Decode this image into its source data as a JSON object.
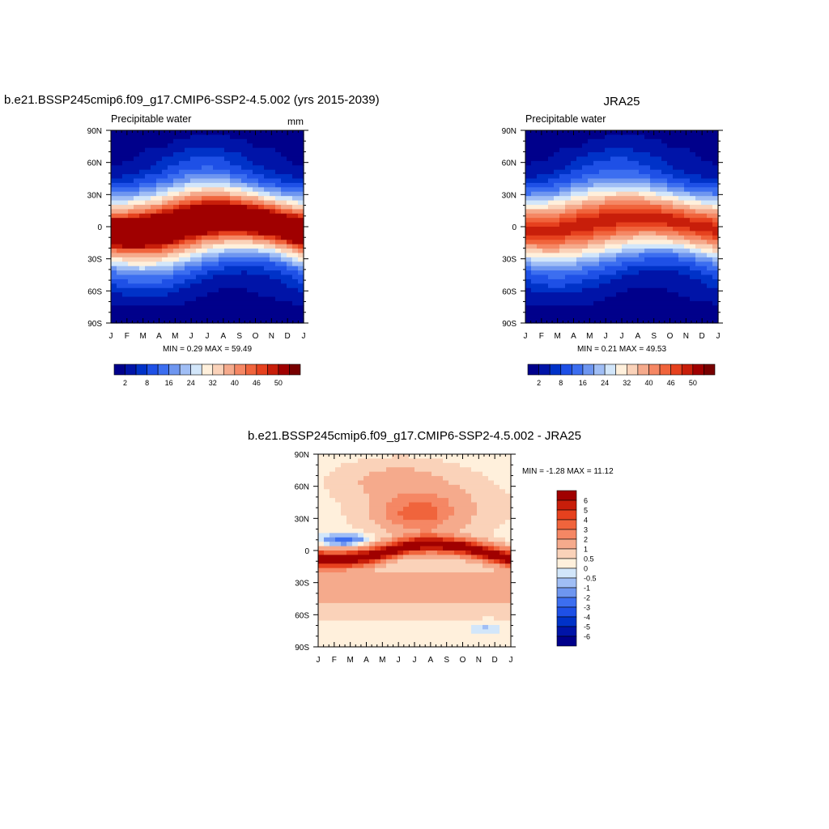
{
  "panels": {
    "model": {
      "title": "b.e21.BSSP245cmip6.f09_g17.CMIP6-SSP2-4.5.002 (yrs 2015-2039)",
      "left_label": "Precipitable water",
      "right_label": "mm",
      "stats": "MIN =   0.29 MAX =  59.49"
    },
    "obs": {
      "title": "JRA25",
      "left_label": "Precipitable water",
      "stats": "MIN =   0.21 MAX =  49.53"
    },
    "diff": {
      "title": "b.e21.BSSP245cmip6.f09_g17.CMIP6-SSP2-4.5.002 - JRA25",
      "stats": "MIN =  -1.28 MAX =  11.12"
    }
  },
  "chart_data": [
    {
      "type": "heatmap",
      "name": "model",
      "x_ticks": [
        "J",
        "F",
        "M",
        "A",
        "M",
        "J",
        "J",
        "A",
        "S",
        "O",
        "N",
        "D",
        "J"
      ],
      "y_ticks": [
        "90N",
        "60N",
        "30N",
        "0",
        "30S",
        "60S",
        "90S"
      ],
      "ylim": [
        -90,
        90
      ],
      "itcz_lat_by_month": [
        -5,
        -6,
        -5,
        -3,
        1,
        5,
        8,
        9,
        8,
        6,
        3,
        -1,
        -5
      ],
      "peak_value": 58,
      "levels": [
        2,
        5,
        8,
        12,
        16,
        20,
        24,
        28,
        32,
        36,
        40,
        43,
        46,
        48,
        50
      ],
      "colorbar_labels": [
        "2",
        "8",
        "16",
        "24",
        "32",
        "40",
        "46",
        "50"
      ],
      "min": 0.29,
      "max": 59.49
    },
    {
      "type": "heatmap",
      "name": "obs",
      "x_ticks": [
        "J",
        "F",
        "M",
        "A",
        "M",
        "J",
        "J",
        "A",
        "S",
        "O",
        "N",
        "D",
        "J"
      ],
      "y_ticks": [
        "90N",
        "60N",
        "30N",
        "0",
        "30S",
        "60S",
        "90S"
      ],
      "ylim": [
        -90,
        90
      ],
      "itcz_lat_by_month": [
        -3,
        -4,
        -3,
        0,
        3,
        6,
        8,
        9,
        8,
        6,
        3,
        0,
        -3
      ],
      "peak_value": 49,
      "levels": [
        2,
        5,
        8,
        12,
        16,
        20,
        24,
        28,
        32,
        36,
        40,
        43,
        46,
        48,
        50
      ],
      "colorbar_labels": [
        "2",
        "8",
        "16",
        "24",
        "32",
        "40",
        "46",
        "50"
      ],
      "min": 0.21,
      "max": 49.53
    },
    {
      "type": "heatmap",
      "name": "difference",
      "x_ticks": [
        "J",
        "F",
        "M",
        "A",
        "M",
        "J",
        "J",
        "A",
        "S",
        "O",
        "N",
        "D",
        "J"
      ],
      "y_ticks": [
        "90N",
        "60N",
        "30N",
        "0",
        "30S",
        "60S",
        "90S"
      ],
      "ylim": [
        -90,
        90
      ],
      "levels": [
        -6,
        -5,
        -4,
        -3,
        -2,
        -1,
        -0.5,
        0,
        0.5,
        1,
        2,
        3,
        4,
        5,
        6
      ],
      "colorbar_labels": [
        "6",
        "5",
        "4",
        "3",
        "2",
        "1",
        "0.5",
        "0",
        "-0.5",
        "-1",
        "-2",
        "-3",
        "-4",
        "-5",
        "-6"
      ],
      "min": -1.28,
      "max": 11.12
    }
  ],
  "colors": {
    "precip_palette": [
      "#00008b",
      "#0014a8",
      "#0032c8",
      "#1e50e6",
      "#3c6ef0",
      "#6e96f0",
      "#a0bef5",
      "#d2e6fa",
      "#fff0dc",
      "#fad2b9",
      "#f5aa8c",
      "#f58764",
      "#f0643c",
      "#e6411e",
      "#c81e0a",
      "#a00000",
      "#780000"
    ],
    "diff_palette": [
      "#00008b",
      "#0014a8",
      "#0032c8",
      "#1e50e6",
      "#3c6ef0",
      "#6e96f0",
      "#a0bef5",
      "#d2e6fa",
      "#fff0dc",
      "#fad2b9",
      "#f5aa8c",
      "#f58764",
      "#f0643c",
      "#e6411e",
      "#c81e0a",
      "#a00000"
    ]
  }
}
